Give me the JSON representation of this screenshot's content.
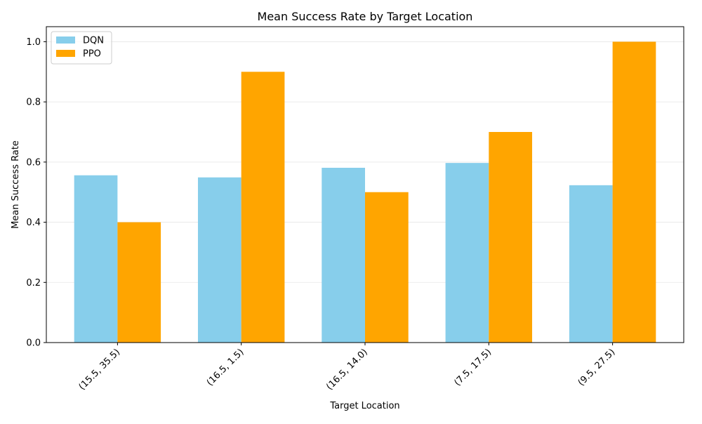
{
  "chart_data": {
    "type": "bar",
    "title": "Mean Success Rate by Target Location",
    "xlabel": "Target Location",
    "ylabel": "Mean Success Rate",
    "categories": [
      "(15.5, 35.5)",
      "(16.5, 1.5)",
      "(16.5, 14.0)",
      "(7.5, 17.5)",
      "(9.5, 27.5)"
    ],
    "series": [
      {
        "name": "DQN",
        "color": "#87CEEB",
        "values": [
          0.556,
          0.549,
          0.581,
          0.597,
          0.523
        ]
      },
      {
        "name": "PPO",
        "color": "#FFA500",
        "values": [
          0.4,
          0.9,
          0.5,
          0.7,
          1.0
        ]
      }
    ],
    "ylim": [
      0,
      1.05
    ],
    "yticks": [
      0.0,
      0.2,
      0.4,
      0.6,
      0.8,
      1.0
    ],
    "ytick_labels": [
      "0.0",
      "0.2",
      "0.4",
      "0.6",
      "0.8",
      "1.0"
    ],
    "grid": "y",
    "legend_position": "top-left"
  }
}
